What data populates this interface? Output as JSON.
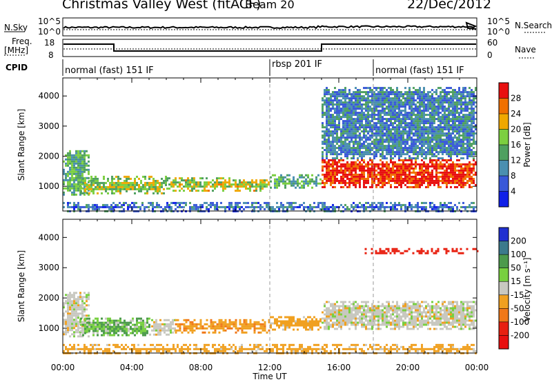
{
  "header": {
    "title": "Christmas Valley West (fitACF)",
    "beam": "Beam 20",
    "date": "22/Dec/2012"
  },
  "panels": {
    "nsky": {
      "left_label": "N.Sky",
      "right_label": "N.Search",
      "ticks_left": [
        "10^5",
        "10^0"
      ],
      "ticks_right": [
        "10^5",
        "10^0"
      ]
    },
    "freq": {
      "left_label_1": "Freq.",
      "left_label_2": "[MHz]",
      "right_label": "Nave",
      "ticks_left": [
        "18",
        "8"
      ],
      "ticks_right": [
        "60",
        "0"
      ]
    },
    "cpid": {
      "label": "CPID",
      "modes": [
        {
          "text": "normal (fast) 151 IF",
          "start_h": 0
        },
        {
          "text": "rbsp 201 IF",
          "start_h": 12
        },
        {
          "text": "normal (fast) 151 IF",
          "start_h": 18
        }
      ]
    }
  },
  "chart_data": [
    {
      "type": "heatmap",
      "title": "",
      "xlabel": "",
      "ylabel": "Slant Range [km]",
      "xlim": [
        0,
        24
      ],
      "ylim": [
        180,
        4600
      ],
      "yticks": [
        1000,
        2000,
        3000,
        4000
      ],
      "colorbar": {
        "label": "Power [dB]",
        "ticks": [
          "4",
          "8",
          "12",
          "16",
          "20",
          "24",
          "28"
        ],
        "colors": [
          "#1020e8",
          "#3858d8",
          "#4a8fb0",
          "#4fa060",
          "#7ccf40",
          "#f0a800",
          "#f07000",
          "#e81010"
        ]
      },
      "regions": [
        {
          "t0": 0.0,
          "t1": 1.5,
          "r0": 700,
          "r1": 2200,
          "level": 0.45
        },
        {
          "t0": 1.0,
          "t1": 6.0,
          "r0": 760,
          "r1": 1350,
          "level": 0.55
        },
        {
          "t0": 6.0,
          "t1": 12.0,
          "r0": 850,
          "r1": 1300,
          "level": 0.6
        },
        {
          "t0": 12.0,
          "t1": 15.0,
          "r0": 950,
          "r1": 1400,
          "level": 0.45
        },
        {
          "t0": 15.0,
          "t1": 24.0,
          "r0": 1000,
          "r1": 1900,
          "level": 0.92
        },
        {
          "t0": 15.0,
          "t1": 24.0,
          "r0": 1900,
          "r1": 4300,
          "level": 0.3
        },
        {
          "t0": 0.0,
          "t1": 24.0,
          "r0": 180,
          "r1": 480,
          "level": 0.25
        }
      ]
    },
    {
      "type": "heatmap",
      "title": "",
      "xlabel": "Time UT",
      "ylabel": "Slant Range [km]",
      "xlim": [
        0,
        24
      ],
      "ylim": [
        180,
        4600
      ],
      "yticks": [
        1000,
        2000,
        3000,
        4000
      ],
      "xticks": [
        "00:00",
        "04:00",
        "08:00",
        "12:00",
        "16:00",
        "20:00",
        "00:00"
      ],
      "colorbar": {
        "label": "Velocity [m s⁻¹]",
        "ticks": [
          "200",
          "100",
          "50",
          "15",
          "-15",
          "-50",
          "-100",
          "-200"
        ],
        "colors": [
          "#2030d0",
          "#3c7a8c",
          "#4c9a4c",
          "#78d040",
          "#c8c8c0",
          "#f0a020",
          "#f07818",
          "#e82010",
          "#e81010"
        ]
      },
      "regions": [
        {
          "t0": 0.0,
          "t1": 1.5,
          "r0": 700,
          "r1": 2200,
          "velocity": 0
        },
        {
          "t0": 1.0,
          "t1": 5.0,
          "r0": 760,
          "r1": 1350,
          "velocity": 30
        },
        {
          "t0": 5.0,
          "t1": 6.5,
          "r0": 760,
          "r1": 1300,
          "velocity": 0
        },
        {
          "t0": 6.5,
          "t1": 12.0,
          "r0": 850,
          "r1": 1300,
          "velocity": -40
        },
        {
          "t0": 12.0,
          "t1": 15.0,
          "r0": 950,
          "r1": 1400,
          "velocity": -30
        },
        {
          "t0": 15.0,
          "t1": 24.0,
          "r0": 1000,
          "r1": 1900,
          "velocity": 0
        },
        {
          "t0": 17.5,
          "t1": 24.0,
          "r0": 3450,
          "r1": 3650,
          "velocity": -120
        },
        {
          "t0": 0.0,
          "t1": 24.0,
          "r0": 180,
          "r1": 480,
          "velocity": -30
        }
      ]
    }
  ]
}
